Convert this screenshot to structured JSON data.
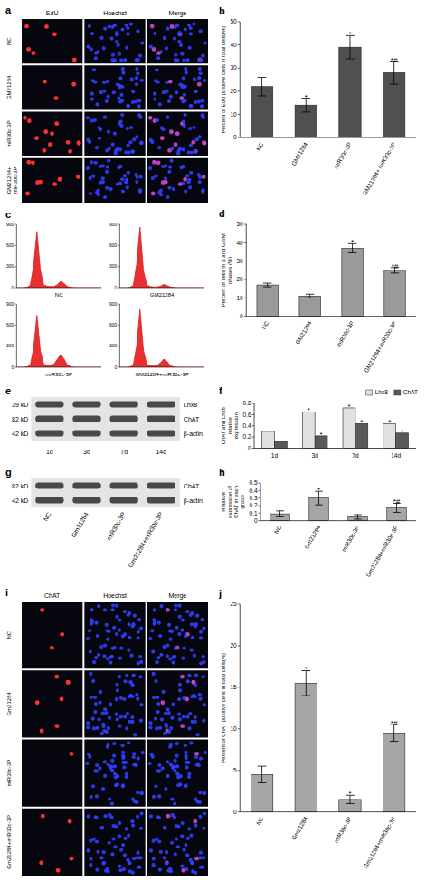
{
  "micrographs": [
    {
      "panel": "a",
      "columns": [
        "EdU",
        "Hoechst",
        "Merge"
      ],
      "rows": [
        "NC",
        "GM21284",
        "miR30c-3P",
        "GM21284+ miR30c-3P"
      ]
    },
    {
      "panel": "i",
      "columns": [
        "ChAT",
        "Hoechst",
        "Merge"
      ],
      "rows": [
        "NC",
        "Gm21284",
        "miR30c-3P",
        "Gm21284+miR30c-3P"
      ]
    }
  ],
  "blots": [
    {
      "panel": "e",
      "bands": [
        {
          "name": "Lhx8",
          "size": "39 kD"
        },
        {
          "name": "ChAT",
          "size": "82 kD"
        },
        {
          "name": "β-actin",
          "size": "42 kD"
        }
      ],
      "lanes": [
        "1d",
        "3d",
        "7d",
        "14d"
      ]
    },
    {
      "panel": "g",
      "bands": [
        {
          "name": "ChAT",
          "size": "82 kD"
        },
        {
          "name": "β-actin",
          "size": "42 kD"
        }
      ],
      "lanes": [
        "NC",
        "Gm21284",
        "miR30c-3P",
        "Gm21284+miR30c-3P"
      ]
    }
  ],
  "chart_data": [
    {
      "type": "bar",
      "panel": "b",
      "y_label": "Percent of EdU positive cells in total cells(%)",
      "categories": [
        "NC",
        "GM21284",
        "miR30c-3P",
        "GM21284+ miR30c-3P"
      ],
      "values": [
        22,
        14,
        39,
        28
      ],
      "errors": [
        4,
        3,
        5,
        5
      ],
      "annotations": [
        null,
        "*",
        "*",
        "*#"
      ],
      "color": "#505050",
      "ylim": [
        0,
        50
      ],
      "yticks": [
        0,
        10,
        20,
        30,
        40,
        50
      ]
    },
    {
      "type": "area",
      "panel": "c",
      "title": "NC",
      "x": [
        0,
        10,
        20,
        30,
        40,
        50,
        60,
        70,
        80,
        90,
        100,
        110,
        120,
        130,
        140,
        150,
        160,
        170,
        180,
        190,
        200,
        210,
        220,
        230,
        240,
        250
      ],
      "values": [
        0,
        0,
        0,
        5,
        30,
        300,
        800,
        250,
        40,
        20,
        15,
        15,
        40,
        90,
        60,
        15,
        5,
        0,
        0,
        0,
        0,
        0,
        0,
        0,
        0,
        0
      ],
      "color": "#e31a1c",
      "xlim": [
        0,
        250
      ],
      "ylim": [
        0,
        900
      ],
      "yticks": [
        0,
        300,
        600,
        900
      ],
      "tick_labels": "y"
    },
    {
      "type": "area",
      "title": "GM21284",
      "x": [
        0,
        10,
        20,
        30,
        40,
        50,
        60,
        70,
        80,
        90,
        100,
        110,
        120,
        130,
        140,
        150,
        160,
        170,
        180,
        190,
        200,
        210,
        220,
        230,
        240,
        250
      ],
      "values": [
        0,
        0,
        0,
        5,
        30,
        330,
        860,
        240,
        35,
        15,
        10,
        10,
        20,
        45,
        30,
        10,
        3,
        0,
        0,
        0,
        0,
        0,
        0,
        0,
        0,
        0
      ],
      "color": "#e31a1c",
      "xlim": [
        0,
        250
      ],
      "ylim": [
        0,
        900
      ],
      "yticks": [
        0,
        300,
        600,
        900
      ],
      "tick_labels": "y"
    },
    {
      "type": "area",
      "title": "miR30c-3P",
      "x": [
        0,
        10,
        20,
        30,
        40,
        50,
        60,
        70,
        80,
        90,
        100,
        110,
        120,
        130,
        140,
        150,
        160,
        170,
        180,
        190,
        200,
        210,
        220,
        230,
        240,
        250
      ],
      "values": [
        0,
        0,
        0,
        5,
        25,
        260,
        740,
        230,
        45,
        30,
        30,
        45,
        110,
        180,
        120,
        30,
        8,
        0,
        0,
        0,
        0,
        0,
        0,
        0,
        0,
        0
      ],
      "color": "#e31a1c",
      "xlim": [
        0,
        250
      ],
      "ylim": [
        0,
        900
      ],
      "yticks": [
        0,
        300,
        600,
        900
      ],
      "tick_labels": "y"
    },
    {
      "type": "area",
      "title": "GM21284+miR30c-3P",
      "x": [
        0,
        10,
        20,
        30,
        40,
        50,
        60,
        70,
        80,
        90,
        100,
        110,
        120,
        130,
        140,
        150,
        160,
        170,
        180,
        190,
        200,
        210,
        220,
        230,
        240,
        250
      ],
      "values": [
        0,
        0,
        0,
        5,
        30,
        300,
        820,
        240,
        40,
        25,
        20,
        25,
        60,
        115,
        80,
        20,
        6,
        0,
        0,
        0,
        0,
        0,
        0,
        0,
        0,
        0
      ],
      "color": "#e31a1c",
      "xlim": [
        0,
        250
      ],
      "ylim": [
        0,
        900
      ],
      "yticks": [
        0,
        300,
        600,
        900
      ],
      "tick_labels": "y"
    },
    {
      "type": "bar",
      "panel": "d",
      "y_label": "Percent of cells in S and G2/M phases (%)",
      "categories": [
        "NC",
        "GM21284",
        "miR30c-3P",
        "GM21284+miR30c-3P"
      ],
      "values": [
        17,
        11,
        37,
        25
      ],
      "errors": [
        1,
        1,
        2.5,
        1.5
      ],
      "annotations": [
        null,
        null,
        "*",
        "*#"
      ],
      "color": "#9a9a9a",
      "ylim": [
        0,
        50
      ],
      "yticks": [
        0,
        10,
        20,
        30,
        40,
        50
      ]
    },
    {
      "type": "bar",
      "panel": "f",
      "y_label": "ChAT and Lhx8 relative expression",
      "categories": [
        "1d",
        "3d",
        "7d",
        "14d"
      ],
      "series": [
        {
          "name": "Lhx8",
          "color": "#e0e0e0",
          "values": [
            0.3,
            0.65,
            0.72,
            0.44
          ],
          "annotations": [
            null,
            "*",
            "*",
            "*"
          ]
        },
        {
          "name": "ChAT",
          "color": "#595959",
          "values": [
            0.12,
            0.22,
            0.44,
            0.27
          ],
          "annotations": [
            null,
            "*",
            "*",
            "*"
          ]
        }
      ],
      "legend": "top-right",
      "ylim": [
        0,
        0.8
      ],
      "yticks": [
        0,
        0.2,
        0.4,
        0.6,
        0.8
      ]
    },
    {
      "type": "bar",
      "panel": "h",
      "y_label": "Relative expression of ChAT in each group",
      "categories": [
        "NC",
        "Gm21284",
        "miR30c-3P",
        "Gm21284+miR30c-3P"
      ],
      "values": [
        0.09,
        0.3,
        0.05,
        0.17
      ],
      "errors": [
        0.04,
        0.09,
        0.03,
        0.06
      ],
      "annotations": [
        null,
        "*",
        null,
        "*#"
      ],
      "color": "#a6a6a6",
      "ylim": [
        0,
        0.5
      ],
      "yticks": [
        0,
        0.1,
        0.2,
        0.3,
        0.4,
        0.5
      ]
    },
    {
      "type": "bar",
      "panel": "j",
      "y_label": "Percent of ChAT positive cells in total cells(%)",
      "categories": [
        "NC",
        "Gm21284",
        "miR30c-3P",
        "Gm21284+miR30c-3P"
      ],
      "values": [
        4.5,
        15.5,
        1.5,
        9.5
      ],
      "errors": [
        1,
        1.5,
        0.5,
        1
      ],
      "annotations": [
        null,
        "*",
        "*",
        "*#"
      ],
      "color": "#a6a6a6",
      "ylim": [
        0,
        25
      ],
      "yticks": [
        0,
        5,
        10,
        15,
        20,
        25
      ]
    }
  ]
}
